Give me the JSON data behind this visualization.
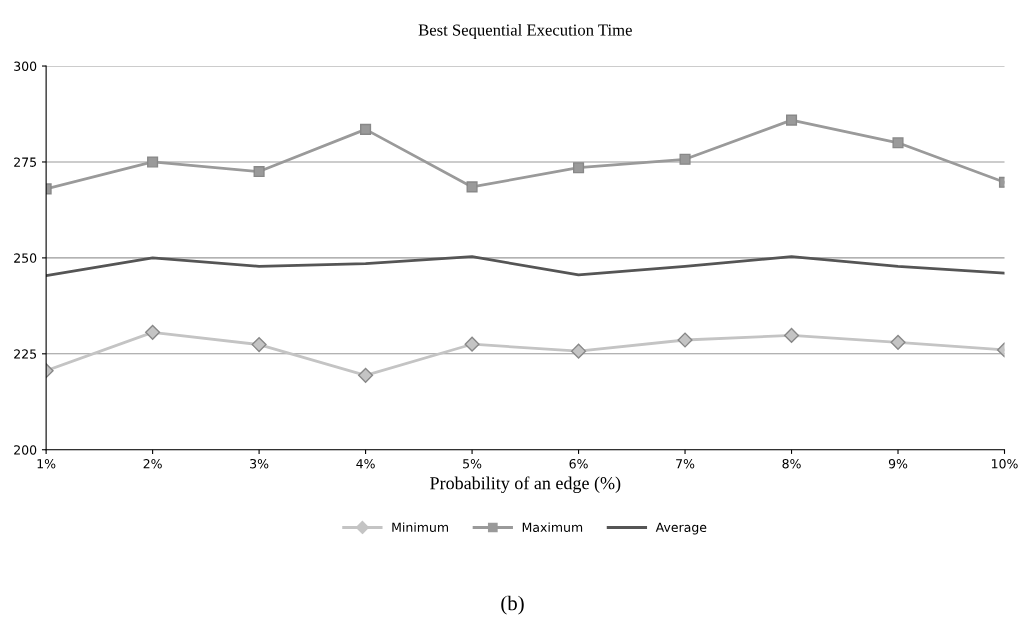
{
  "chart_data": {
    "type": "line",
    "title": "Best Sequential Execution Time",
    "xlabel": "Probability of an edge (%)",
    "categories": [
      "1%",
      "2%",
      "3%",
      "4%",
      "5%",
      "6%",
      "7%",
      "8%",
      "9%",
      "10%"
    ],
    "series": [
      {
        "name": "Minimum",
        "color": "#c4c4c4",
        "marker": "diamond",
        "values": [
          220.6,
          230.6,
          227.4,
          219.4,
          227.5,
          225.7,
          228.6,
          229.8,
          228,
          226
        ]
      },
      {
        "name": "Maximum",
        "color": "#9a9a9a",
        "marker": "square",
        "values": [
          268,
          275,
          272.5,
          283.5,
          268.5,
          273.5,
          275.7,
          285.9,
          280,
          269.7
        ]
      },
      {
        "name": "Average",
        "color": "#555555",
        "marker": "none",
        "values": [
          245.4,
          250,
          247.8,
          248.5,
          250.3,
          245.6,
          247.8,
          250.3,
          247.8,
          246
        ]
      }
    ],
    "ylim": [
      200,
      300
    ],
    "yticks": [
      200,
      225,
      250,
      275,
      300
    ],
    "grid": "y",
    "legend": "bottom",
    "annotations": [
      "(b)"
    ]
  }
}
